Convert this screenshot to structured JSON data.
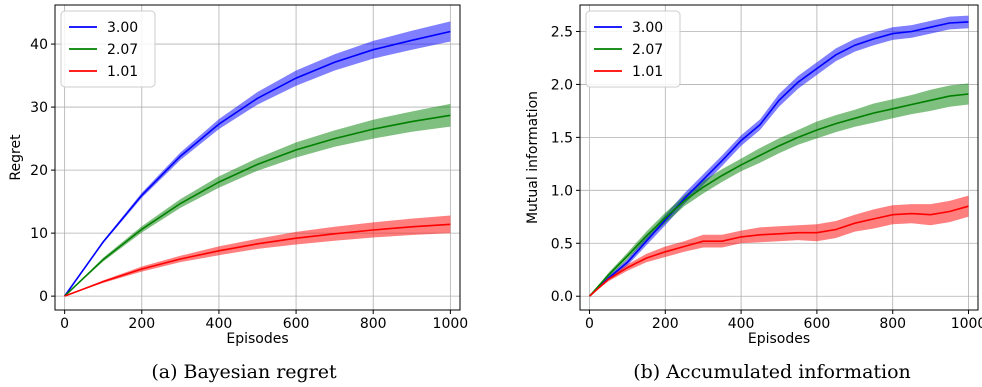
{
  "chart_data": [
    {
      "type": "line",
      "title": "",
      "caption": "(a) Bayesian regret",
      "xlabel": "Episodes",
      "ylabel": "Regret",
      "xlim": [
        -25,
        1025
      ],
      "ylim": [
        -2.2,
        46.2
      ],
      "xticks": [
        0,
        200,
        400,
        600,
        800,
        1000
      ],
      "yticks": [
        0,
        10,
        20,
        30,
        40
      ],
      "grid": true,
      "legend_position": "top-left",
      "x": [
        0,
        100,
        200,
        300,
        400,
        500,
        600,
        700,
        800,
        900,
        1000
      ],
      "series": [
        {
          "name": "3.00",
          "color": "#0000ff",
          "values": [
            0,
            8.6,
            16.0,
            22.2,
            27.3,
            31.4,
            34.6,
            37.1,
            39.1,
            40.6,
            42.0
          ],
          "band": [
            0,
            0.2,
            0.4,
            0.6,
            0.8,
            1.0,
            1.2,
            1.3,
            1.4,
            1.5,
            1.6
          ]
        },
        {
          "name": "2.07",
          "color": "#008000",
          "values": [
            0,
            5.8,
            10.6,
            14.7,
            18.1,
            20.9,
            23.2,
            25.0,
            26.5,
            27.7,
            28.7
          ],
          "band": [
            0,
            0.3,
            0.5,
            0.7,
            0.9,
            1.0,
            1.2,
            1.3,
            1.5,
            1.6,
            1.8
          ]
        },
        {
          "name": "1.01",
          "color": "#ff0000",
          "values": [
            0,
            2.3,
            4.3,
            5.9,
            7.2,
            8.3,
            9.2,
            9.9,
            10.5,
            11.0,
            11.4
          ],
          "band": [
            0,
            0.2,
            0.4,
            0.5,
            0.7,
            0.8,
            1.0,
            1.1,
            1.2,
            1.3,
            1.4
          ]
        }
      ]
    },
    {
      "type": "line",
      "title": "",
      "caption": "(b) Accumulated information",
      "xlabel": "Episodes",
      "ylabel": "Mutual information",
      "xlim": [
        -25,
        1025
      ],
      "ylim": [
        -0.13,
        2.75
      ],
      "xticks": [
        0,
        200,
        400,
        600,
        800,
        1000
      ],
      "yticks": [
        0.0,
        0.5,
        1.0,
        1.5,
        2.0,
        2.5
      ],
      "grid": true,
      "legend_position": "top-left",
      "x": [
        0,
        50,
        100,
        150,
        200,
        250,
        300,
        350,
        400,
        450,
        500,
        550,
        600,
        650,
        700,
        750,
        800,
        850,
        900,
        950,
        1000
      ],
      "series": [
        {
          "name": "3.00",
          "color": "#0000ff",
          "values": [
            0,
            0.17,
            0.32,
            0.52,
            0.72,
            0.92,
            1.1,
            1.28,
            1.47,
            1.62,
            1.85,
            2.02,
            2.15,
            2.28,
            2.37,
            2.43,
            2.48,
            2.5,
            2.54,
            2.58,
            2.59
          ],
          "band": [
            0,
            0.02,
            0.03,
            0.04,
            0.05,
            0.05,
            0.05,
            0.05,
            0.05,
            0.05,
            0.06,
            0.06,
            0.06,
            0.06,
            0.06,
            0.06,
            0.06,
            0.06,
            0.06,
            0.06,
            0.06
          ]
        },
        {
          "name": "2.07",
          "color": "#008000",
          "values": [
            0,
            0.2,
            0.38,
            0.57,
            0.74,
            0.9,
            1.03,
            1.14,
            1.24,
            1.33,
            1.42,
            1.5,
            1.57,
            1.63,
            1.68,
            1.73,
            1.77,
            1.81,
            1.85,
            1.89,
            1.91
          ],
          "band": [
            0,
            0.02,
            0.03,
            0.04,
            0.05,
            0.05,
            0.06,
            0.06,
            0.06,
            0.07,
            0.07,
            0.07,
            0.08,
            0.08,
            0.08,
            0.09,
            0.09,
            0.09,
            0.1,
            0.1,
            0.1
          ]
        },
        {
          "name": "1.01",
          "color": "#ff0000",
          "values": [
            0,
            0.16,
            0.27,
            0.36,
            0.42,
            0.47,
            0.52,
            0.52,
            0.56,
            0.58,
            0.59,
            0.6,
            0.6,
            0.63,
            0.69,
            0.73,
            0.77,
            0.78,
            0.77,
            0.8,
            0.85
          ],
          "band": [
            0,
            0.02,
            0.03,
            0.04,
            0.05,
            0.05,
            0.06,
            0.06,
            0.06,
            0.07,
            0.07,
            0.07,
            0.08,
            0.08,
            0.08,
            0.09,
            0.09,
            0.09,
            0.1,
            0.1,
            0.1
          ]
        }
      ]
    }
  ]
}
